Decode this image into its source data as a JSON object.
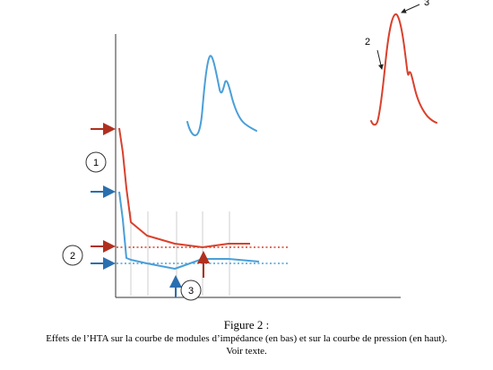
{
  "labels": {
    "marker_1": "1",
    "marker_2": "2",
    "marker_3": "3",
    "peak_label_2": "2",
    "peak_label_3": "3"
  },
  "caption": {
    "title": "Figure 2 :",
    "line1": "Effets de l’HTA sur la courbe de modules d’impédance (en bas) et sur la courbe de pression (en haut).",
    "line2": "Voir texte."
  },
  "colors": {
    "pressure": "#d9412d",
    "impedance": "#4a9fd8",
    "axis": "#333333",
    "grid": "#cccccc",
    "arrow_red": "#b03020",
    "arrow_blue": "#2a6fb0"
  },
  "legend_semantics": {
    "red": "courbe de pression",
    "blue": "courbe de modules d’impédance"
  }
}
